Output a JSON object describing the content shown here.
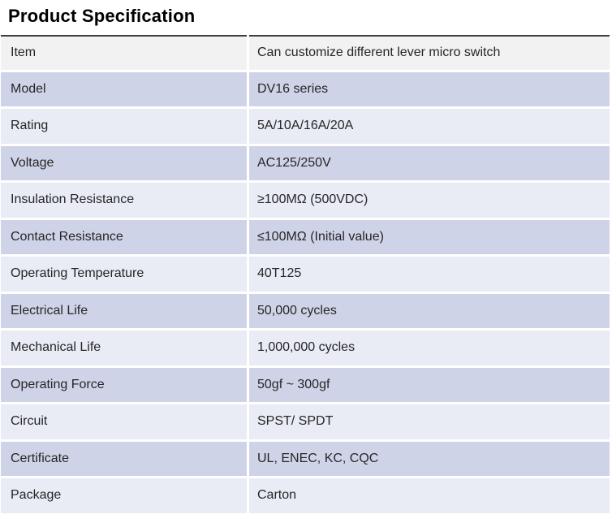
{
  "page": {
    "title": "Product Specification"
  },
  "colors": {
    "title_text": "#000000",
    "body_text": "#262626",
    "header_row_bg": "#f2f2f2",
    "row_dark_bg": "#cfd3e8",
    "row_light_bg": "#e9ebf5",
    "top_border": "#3d3d3d",
    "page_bg": "#ffffff"
  },
  "table": {
    "rows": [
      {
        "label": "Item",
        "value": "Can customize different lever micro switch"
      },
      {
        "label": "Model",
        "value": "DV16 series"
      },
      {
        "label": "Rating",
        "value": "5A/10A/16A/20A"
      },
      {
        "label": "Voltage",
        "value": "AC125/250V"
      },
      {
        "label": "Insulation Resistance",
        "value": "≥100MΩ (500VDC)"
      },
      {
        "label": "Contact Resistance",
        "value": "≤100MΩ (Initial value)"
      },
      {
        "label": "Operating Temperature",
        "value": "40T125"
      },
      {
        "label": "Electrical Life",
        "value": "50,000 cycles"
      },
      {
        "label": "Mechanical Life",
        "value": "1,000,000 cycles"
      },
      {
        "label": "Operating Force",
        "value": "50gf ~ 300gf"
      },
      {
        "label": "Circuit",
        "value": "SPST/ SPDT"
      },
      {
        "label": "Certificate",
        "value": "UL, ENEC, KC, CQC"
      },
      {
        "label": "Package",
        "value": "Carton"
      }
    ]
  }
}
